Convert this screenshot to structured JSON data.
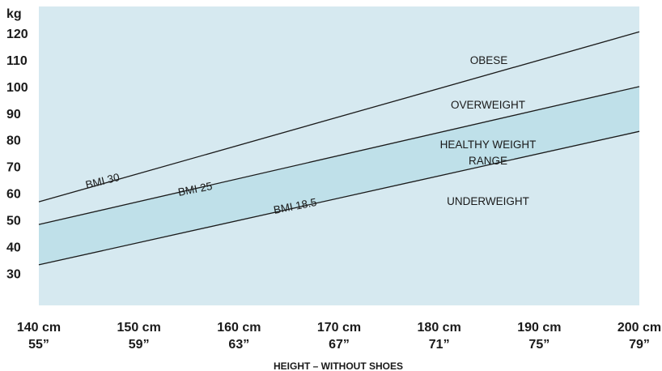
{
  "chart_data": {
    "type": "line",
    "title": "",
    "colors": {
      "background": "#d6e9f0",
      "healthy_band": "#bfe0e9",
      "line": "#1a1a1a"
    },
    "ylabel": "kg",
    "xlabel": "HEIGHT – WITHOUT SHOES",
    "xlim": [
      140,
      200
    ],
    "ylim": [
      18,
      130
    ],
    "y_ticks": [
      30,
      40,
      50,
      60,
      70,
      80,
      90,
      100,
      110,
      120
    ],
    "x_ticks": [
      {
        "value": 140,
        "cm": "140 cm",
        "inch": "55”"
      },
      {
        "value": 150,
        "cm": "150 cm",
        "inch": "59”"
      },
      {
        "value": 160,
        "cm": "160 cm",
        "inch": "63”"
      },
      {
        "value": 170,
        "cm": "170 cm",
        "inch": "67”"
      },
      {
        "value": 180,
        "cm": "180 cm",
        "inch": "71”"
      },
      {
        "value": 190,
        "cm": "190 cm",
        "inch": "75”"
      },
      {
        "value": 200,
        "cm": "200 cm",
        "inch": "79”"
      }
    ],
    "series": [
      {
        "name": "BMI 30",
        "x": [
          140,
          200
        ],
        "y": [
          56.8,
          120.5
        ]
      },
      {
        "name": "BMI 25",
        "x": [
          140,
          200
        ],
        "y": [
          48.3,
          100.0
        ]
      },
      {
        "name": "BMI 18.5",
        "x": [
          140,
          200
        ],
        "y": [
          33.2,
          83.2
        ]
      }
    ],
    "shaded_band": {
      "label": "HEALTHY WEIGHT RANGE",
      "between": [
        "BMI 18.5",
        "BMI 25"
      ]
    },
    "region_labels": [
      "OBESE",
      "OVERWEIGHT",
      "HEALTHY WEIGHT",
      "RANGE",
      "UNDERWEIGHT"
    ]
  }
}
